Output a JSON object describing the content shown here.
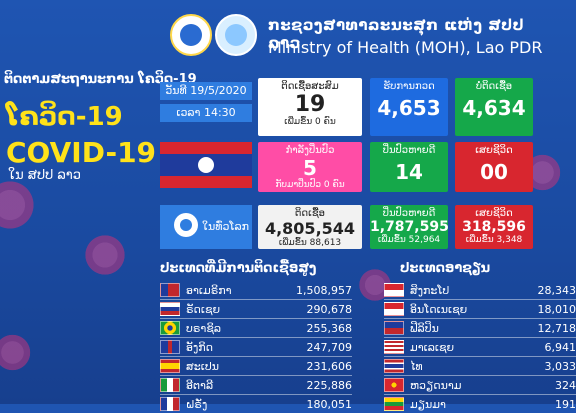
{
  "header": {
    "ministry_lao": "ກະຊວງສາທາລະນະສຸກ ແຫ່ງ ສປປ ລາວ",
    "ministry_en": "Ministry of Health (MOH), Lao PDR"
  },
  "left_panel": {
    "subtitle": "ຕິດຕາມສະຖານະການ ໂຄວິດ-19",
    "title_lao": "ໂຄວິດ-19",
    "title_en": "COVID-19",
    "country": "ໃນ ສປປ ລາວ"
  },
  "date_label": "ວັນທີ 19/5/2020",
  "time_label": "ເວລາ 14:30",
  "tiles": {
    "total_cases": {
      "label": "ຕິດເຊື້ອສະສົມ",
      "value": "19",
      "sub": "ເພີ່ມຂຶ້ນ 0 ຄົນ"
    },
    "tested": {
      "label": "ຮັບການກວດ",
      "value": "4,653"
    },
    "negative": {
      "label": "ບໍ່ຕິດເຊື້ອ",
      "value": "4,634"
    },
    "under_treatment": {
      "label": "ກຳລັງປິ່ນປົວ",
      "value": "5",
      "sub": "ກັບມາປິ່ນປົວ 0 ຄົນ"
    },
    "recovered": {
      "label": "ປິ່ນປົວຫາຍດີ",
      "value": "14"
    },
    "deaths": {
      "label": "ເສຍຊີວິດ",
      "value": "00"
    }
  },
  "world": {
    "label": "ໃນທົ່ວໂລກ",
    "cases": {
      "label": "ຕິດເຊື້ອ",
      "value": "4,805,544",
      "sub": "ເພີ່ມຂຶ້ນ 88,613"
    },
    "recovered": {
      "label": "ປິ່ນປົວຫາຍດີ",
      "value": "1,787,595",
      "sub": "ເພີ່ມຂຶ້ນ 52,964"
    },
    "deaths": {
      "label": "ເສຍຊີວິດ",
      "value": "318,596",
      "sub": "ເພີ່ມຂຶ້ນ 3,348"
    }
  },
  "top_countries": {
    "title": "ປະເທດທີ່ມີການຕິດເຊື້ອສູງ",
    "rows": [
      {
        "name": "ອາເມຣິກາ",
        "value": "1,508,957"
      },
      {
        "name": "ຣັດເຊຍ",
        "value": "290,678"
      },
      {
        "name": "ບຣາຊິລ",
        "value": "255,368"
      },
      {
        "name": "ອັງກິດ",
        "value": "247,709"
      },
      {
        "name": "ສະເປນ",
        "value": "231,606"
      },
      {
        "name": "ອີຕາລີ",
        "value": "225,886"
      },
      {
        "name": "ຝຣັ່ງ",
        "value": "180,051"
      }
    ]
  },
  "asean": {
    "title": "ປະເທດອາຊຽນ",
    "rows": [
      {
        "name": "ສິງກະໂປ",
        "value": "28,343"
      },
      {
        "name": "ອິນໂດເນເຊຍ",
        "value": "18,010"
      },
      {
        "name": "ຟີລິປິນ",
        "value": "12,718"
      },
      {
        "name": "ມາເລເຊຍ",
        "value": "6,941"
      },
      {
        "name": "ໄທ",
        "value": "3,033"
      },
      {
        "name": "ຫວຽດນາມ",
        "value": "324"
      },
      {
        "name": "ມຽນມາ",
        "value": "191"
      }
    ]
  },
  "colors": {
    "accent_yellow": "#ffe21a",
    "pink": "#ff4da6",
    "green": "#15a84a",
    "red": "#d8262f",
    "blue": "#1e6be0"
  }
}
